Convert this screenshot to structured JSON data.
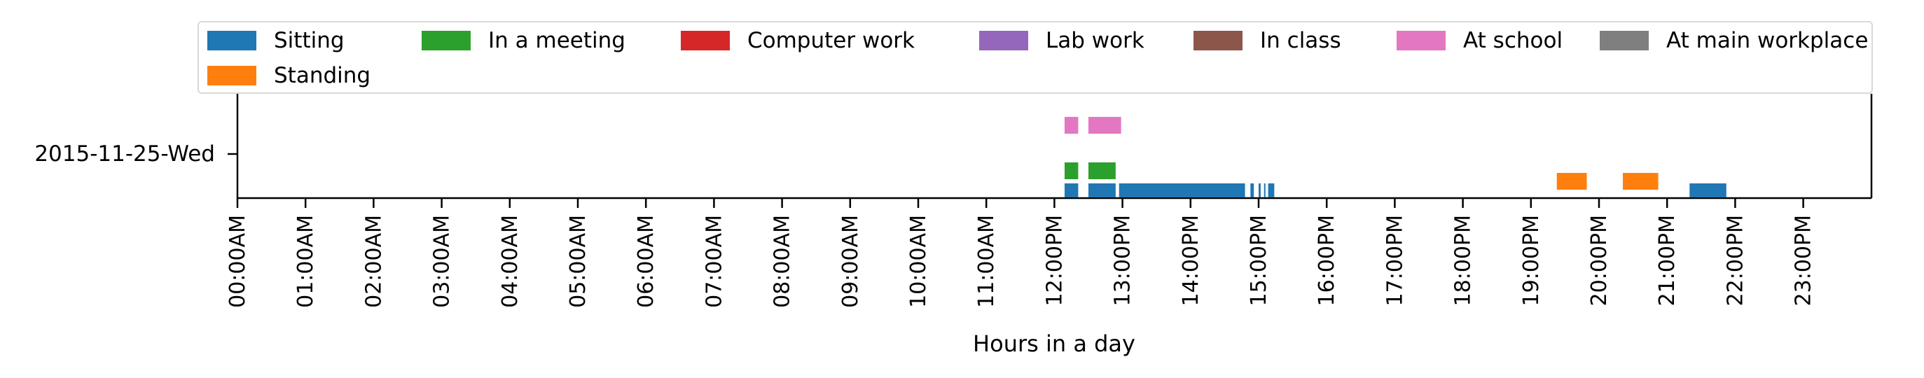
{
  "chart_data": {
    "type": "bar",
    "orientation": "horizontal-timeline",
    "xlabel": "Hours in a day",
    "ylabel": "",
    "xlim": [
      0,
      24
    ],
    "y_categories": [
      "2015-11-25-Wed"
    ],
    "x_ticks": [
      "00:00AM",
      "01:00AM",
      "02:00AM",
      "03:00AM",
      "04:00AM",
      "05:00AM",
      "06:00AM",
      "07:00AM",
      "08:00AM",
      "09:00AM",
      "10:00AM",
      "11:00AM",
      "12:00PM",
      "13:00PM",
      "14:00PM",
      "15:00PM",
      "16:00PM",
      "17:00PM",
      "18:00PM",
      "19:00PM",
      "20:00PM",
      "21:00PM",
      "22:00PM",
      "23:00PM"
    ],
    "legend_position": "top",
    "series": [
      {
        "name": "Sitting",
        "color": "#1f77b4",
        "lane": 0,
        "intervals": [
          [
            12.15,
            12.35
          ],
          [
            12.5,
            12.9
          ],
          [
            12.95,
            14.8
          ],
          [
            14.88,
            14.93
          ],
          [
            15.0,
            15.03
          ],
          [
            15.08,
            15.1
          ],
          [
            15.14,
            15.23
          ]
        ]
      },
      {
        "name": "In a meeting",
        "color": "#2ca02c",
        "lane": 1,
        "intervals": [
          [
            12.15,
            12.35
          ],
          [
            12.5,
            12.9
          ]
        ]
      },
      {
        "name": "Computer work",
        "color": "#d62728",
        "lane": 2,
        "intervals": []
      },
      {
        "name": "Lab work",
        "color": "#9467bd",
        "lane": 3,
        "intervals": []
      },
      {
        "name": "In class",
        "color": "#8c564b",
        "lane": 4,
        "intervals": []
      },
      {
        "name": "At school",
        "color": "#e377c2",
        "lane": 5,
        "intervals": [
          [
            12.15,
            12.35
          ],
          [
            12.5,
            12.98
          ]
        ]
      },
      {
        "name": "At main workplace",
        "color": "#7f7f7f",
        "lane": 6,
        "intervals": []
      },
      {
        "name": "Standing",
        "color": "#ff7f0e",
        "lane": -1,
        "intervals": [
          [
            19.38,
            19.82
          ],
          [
            20.35,
            20.87
          ]
        ]
      }
    ],
    "extra_intervals": [
      {
        "series": "Sitting",
        "interval": [
          21.33,
          21.87
        ]
      }
    ]
  }
}
